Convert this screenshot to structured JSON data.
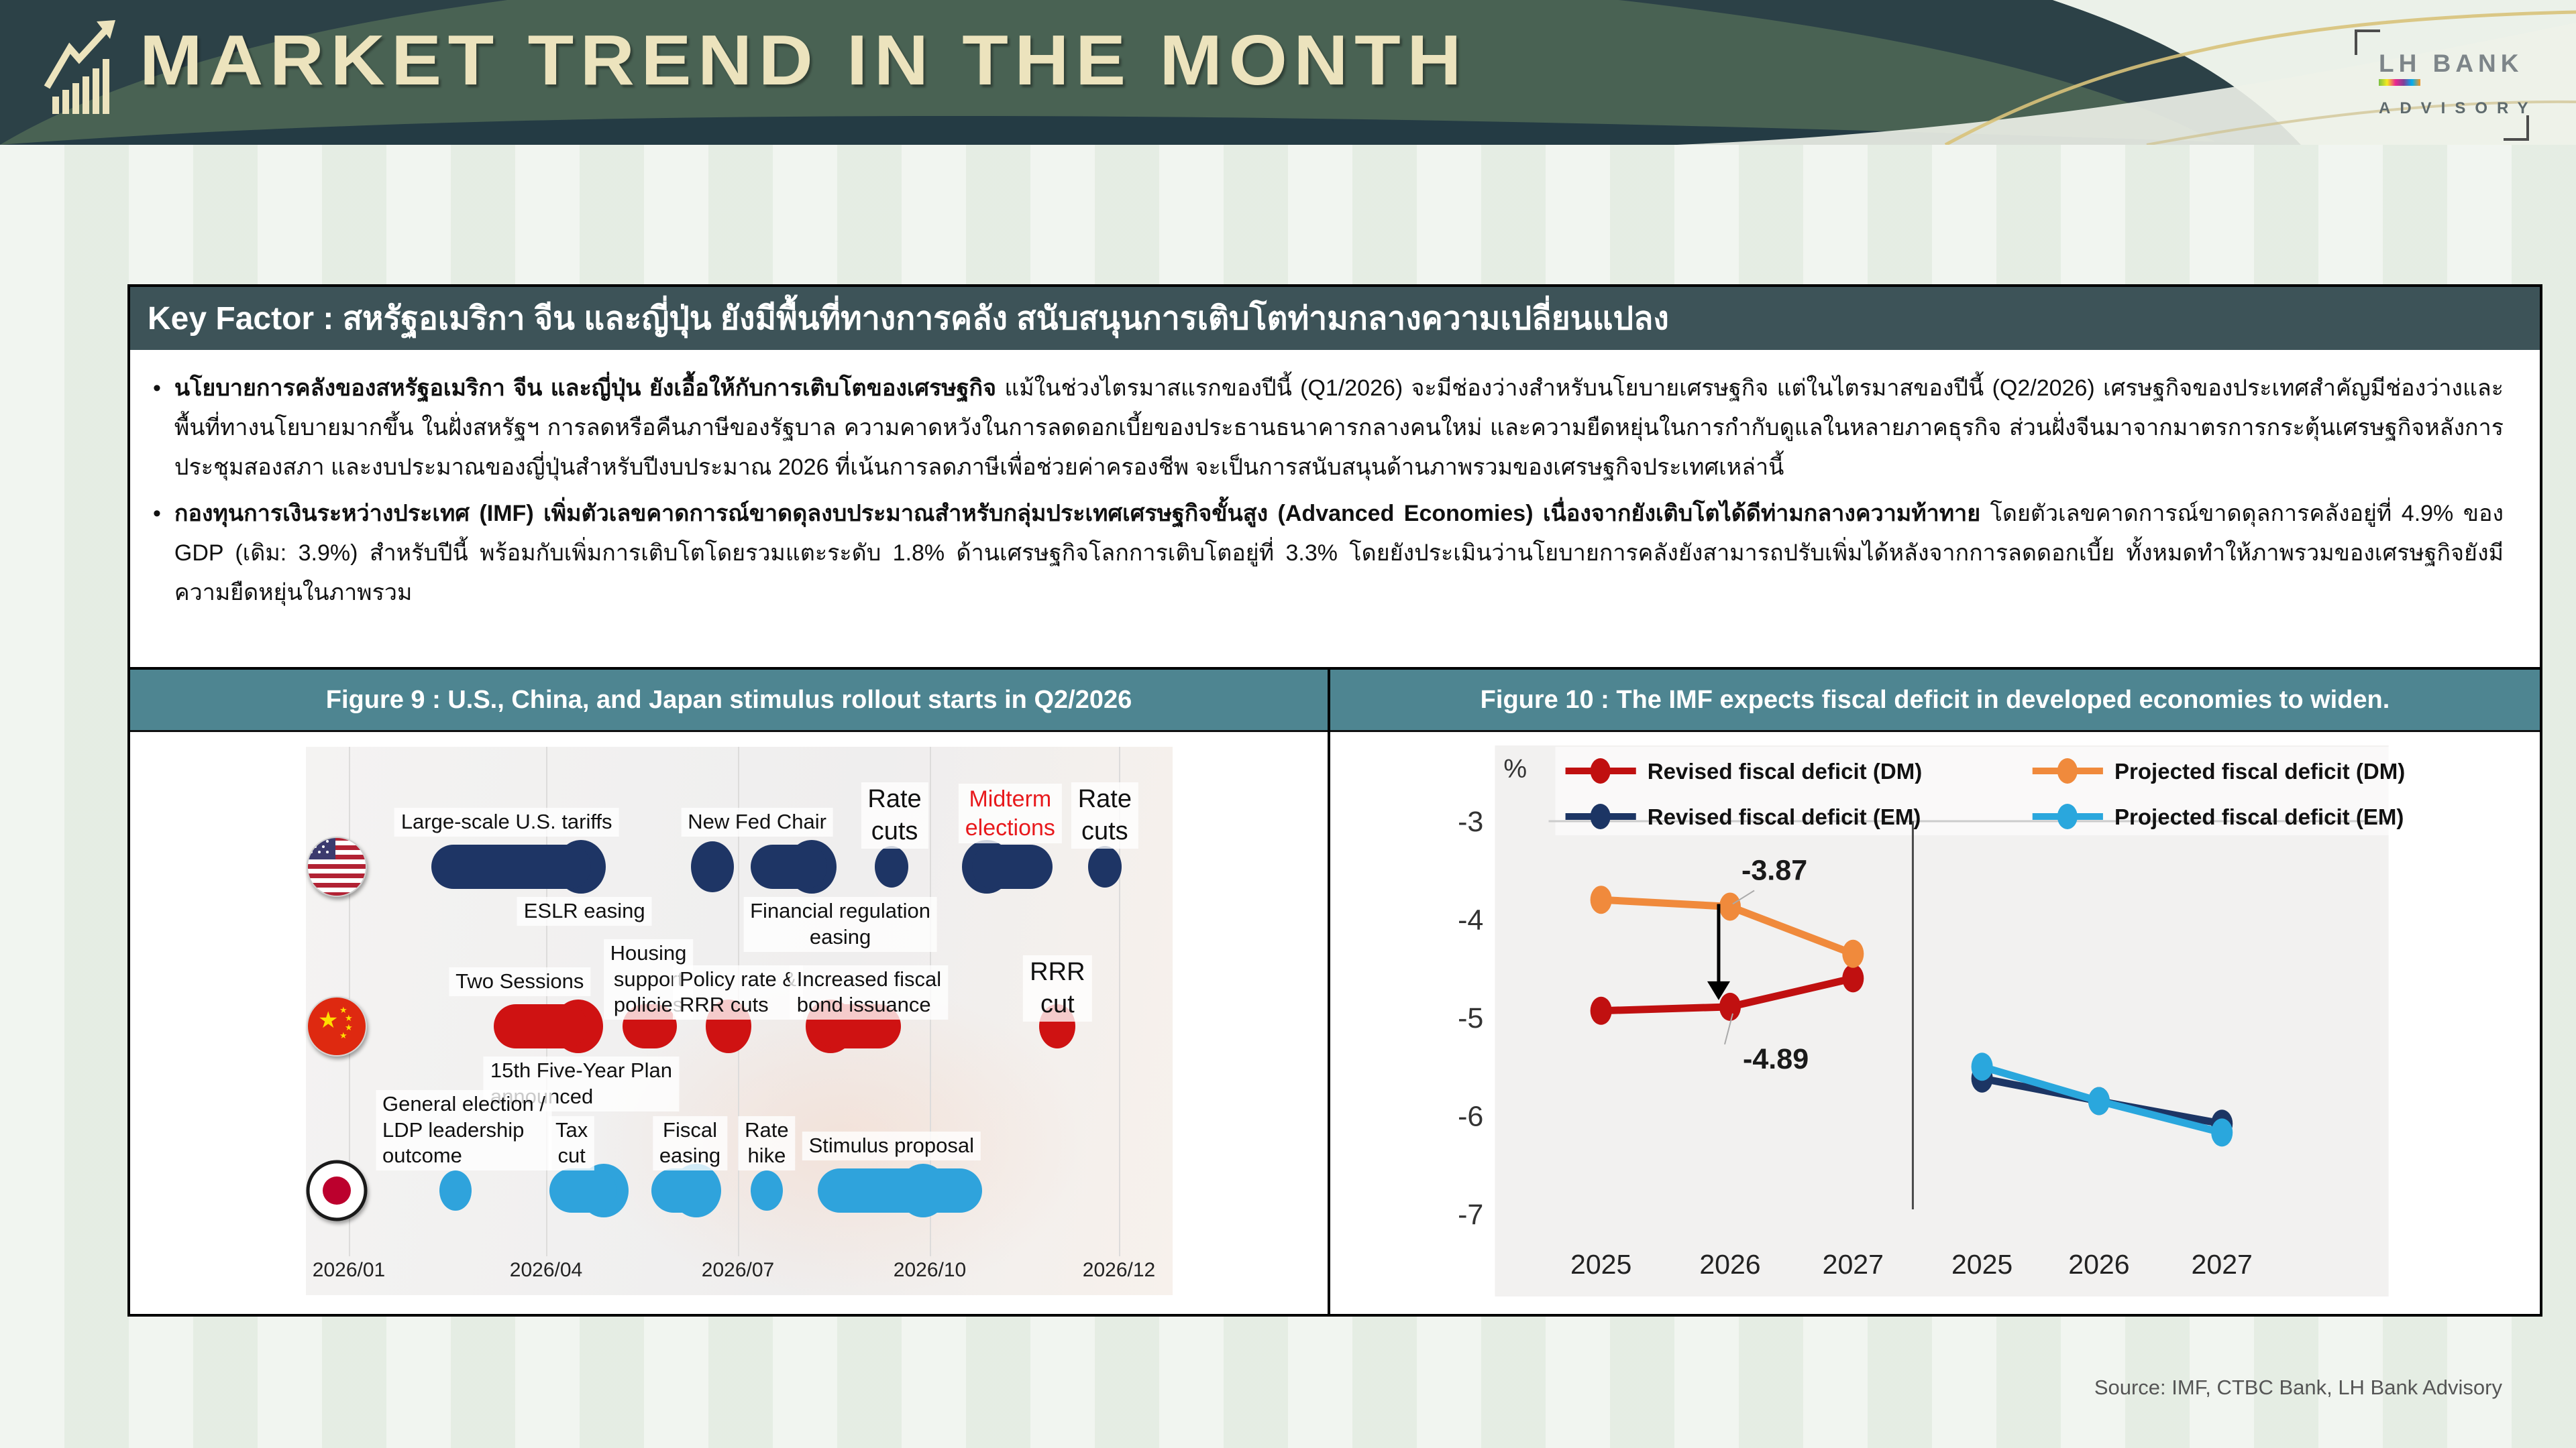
{
  "header": {
    "title": "MARKET TREND IN THE MONTH",
    "logo": {
      "line1": "LH BANK",
      "line2": "ADVISORY"
    }
  },
  "key_factor": {
    "title": "Key Factor : สหรัฐอเมริกา จีน และญี่ปุ่น ยังมีพื้นที่ทางการคลัง สนับสนุนการเติบโตท่ามกลางความเปลี่ยนแปลง"
  },
  "bullets": [
    {
      "bold": "นโยบายการคลังของสหรัฐอเมริกา จีน และญี่ปุ่น ยังเอื้อให้กับการเติบโตของเศรษฐกิจ",
      "rest": " แม้ในช่วงไตรมาสแรกของปีนี้ (Q1/2026) จะมีช่องว่างสำหรับนโยบายเศรษฐกิจ แต่ในไตรมาสของปีนี้ (Q2/2026) เศรษฐกิจของประเทศสำคัญมีช่องว่างและพื้นที่ทางนโยบายมากขึ้น ในฝั่งสหรัฐฯ การลดหรือคืนภาษีของรัฐบาล ความคาดหวังในการลดดอกเบี้ยของประธานธนาคารกลางคนใหม่ และความยืดหยุ่นในการกำกับดูแลในหลายภาคธุรกิจ ส่วนฝั่งจีนมาจากมาตรการกระตุ้นเศรษฐกิจหลังการประชุมสองสภา และงบประมาณของญี่ปุ่นสำหรับปีงบประมาณ 2026 ที่เน้นการลดภาษีเพื่อช่วยค่าครองชีพ จะเป็นการสนับสนุนด้านภาพรวมของเศรษฐกิจประเทศเหล่านี้"
    },
    {
      "bold": "กองทุนการเงินระหว่างประเทศ (IMF) เพิ่มตัวเลขคาดการณ์ขาดดุลงบประมาณสำหรับกลุ่มประเทศเศรษฐกิจขั้นสูง (Advanced Economies) เนื่องจากยังเติบโตได้ดีท่ามกลางความท้าทาย",
      "rest": " โดยตัวเลขคาดการณ์ขาดดุลการคลังอยู่ที่ 4.9% ของ GDP (เดิม: 3.9%) สำหรับปีนี้ พร้อมกับเพิ่มการเติบโตโดยรวมแตะระดับ 1.8% ด้านเศรษฐกิจโลกการเติบโตอยู่ที่ 3.3% โดยยังประเมินว่านโยบายการคลังยังสามารถปรับเพิ่มได้หลังจากการลดดอกเบี้ย ทั้งหมดทำให้ภาพรวมของเศรษฐกิจยังมีความยืดหยุ่นในภาพรวม"
    }
  ],
  "figure9": {
    "title": "Figure 9 : U.S., China, and Japan stimulus rollout starts in Q2/2026"
  },
  "figure10": {
    "title": "Figure 10 : The IMF expects fiscal deficit in developed economies to widen."
  },
  "source": "Source: IMF, CTBC Bank, LH Bank Advisory",
  "colors": {
    "header_bg": "#2c4147",
    "header_arc": "#4b6454",
    "header_text": "#ece3bd",
    "key_factor_bar": "#3d5358",
    "figure_title_bar": "#4e8591",
    "us_navy": "#1e3565",
    "china_red": "#cf1212",
    "japan_blue": "#2fa3dc",
    "dm_revised_red": "#c01010",
    "dm_projected_orange": "#f08a3c",
    "em_revised_navy": "#1c3564",
    "em_projected_blue": "#2aa7dd"
  },
  "chart_data": [
    {
      "id": "figure9",
      "type": "scatter",
      "variant": "timeline",
      "title": "U.S., China, and Japan stimulus rollout starts in Q2/2026",
      "axis": {
        "unit": "month of 2026",
        "ticks": [
          "2026/01",
          "2026/04",
          "2026/07",
          "2026/10",
          "2026/12"
        ]
      },
      "rows": [
        {
          "country": "United States",
          "flag": "us",
          "color": "#1e3565",
          "markers": [
            {
              "shape": "bar",
              "start": 2.25,
              "end": 4.7
            },
            {
              "shape": "dot",
              "m": 6.6,
              "d": 64
            },
            {
              "shape": "bar",
              "start": 7.2,
              "end": 8.4
            },
            {
              "shape": "dot",
              "m": 9.4,
              "d": 50
            },
            {
              "shape": "bar",
              "start": 10.45,
              "end": 11.3
            },
            {
              "shape": "dot",
              "m": 11.85,
              "d": 50
            }
          ],
          "bumps": [
            4.55,
            8.15,
            10.6
          ],
          "labels": [
            {
              "lines": [
                "Large-scale U.S. tariffs"
              ],
              "side": "above",
              "m": 3.4
            },
            {
              "lines": [
                "ESLR easing"
              ],
              "side": "below",
              "m": 4.6
            },
            {
              "lines": [
                "New Fed Chair"
              ],
              "side": "above",
              "m": 7.3
            },
            {
              "lines": [
                "Financial regulation",
                "easing"
              ],
              "side": "below",
              "m": 8.6
            },
            {
              "lines": [
                "Rate",
                "cuts"
              ],
              "side": "above",
              "m": 9.45,
              "size": 38,
              "drop": 18
            },
            {
              "lines": [
                "Midterm",
                "elections"
              ],
              "side": "above",
              "m": 10.85,
              "size": 34,
              "color": "#e8191c",
              "drop": 10
            },
            {
              "lines": [
                "Rate",
                "cuts"
              ],
              "side": "above",
              "m": 11.85,
              "size": 38,
              "drop": 18
            }
          ]
        },
        {
          "country": "China",
          "flag": "cn",
          "color": "#cf1212",
          "markers": [
            {
              "shape": "bar",
              "start": 3.2,
              "end": 4.65
            },
            {
              "shape": "bar",
              "start": 5.2,
              "end": 6.05
            },
            {
              "shape": "dot",
              "m": 6.85,
              "d": 68
            },
            {
              "shape": "bar",
              "start": 8.2,
              "end": 9.55
            },
            {
              "shape": "dot",
              "m": 11.35,
              "d": 54
            }
          ],
          "bumps": [
            4.5,
            8.45
          ],
          "labels": [
            {
              "lines": [
                "Two Sessions"
              ],
              "side": "above",
              "m": 3.6
            },
            {
              "lines": [
                "15th Five-Year Plan",
                "announced"
              ],
              "side": "below",
              "m": 4.55,
              "align": "left"
            },
            {
              "lines": [
                "Housing",
                "support",
                "policies"
              ],
              "side": "above",
              "m": 5.6,
              "drop": 35
            },
            {
              "lines": [
                "Policy rate &",
                "RRR cuts"
              ],
              "side": "above",
              "m": 7.0,
              "align": "left",
              "drop": 35
            },
            {
              "lines": [
                "Increased fiscal",
                "bond issuance"
              ],
              "side": "above",
              "m": 9.05,
              "align": "left",
              "drop": 35
            },
            {
              "lines": [
                "RRR",
                "cut"
              ],
              "side": "above",
              "m": 11.35,
              "size": 38,
              "drop": 38
            }
          ]
        },
        {
          "country": "Japan",
          "flag": "jp",
          "color": "#2fa3dc",
          "markers": [
            {
              "shape": "dot",
              "m": 2.62,
              "d": 48
            },
            {
              "shape": "bar",
              "start": 4.05,
              "end": 5.1
            },
            {
              "shape": "bar",
              "start": 5.65,
              "end": 6.7
            },
            {
              "shape": "dot",
              "m": 7.45,
              "d": 48
            },
            {
              "shape": "bar",
              "start": 8.25,
              "end": 10.55
            }
          ],
          "bumps": [
            4.9,
            6.35,
            9.9
          ],
          "labels": [
            {
              "lines": [
                "General election /",
                "LDP leadership",
                "outcome"
              ],
              "side": "above",
              "m": 2.75,
              "align": "left",
              "drop": 15
            },
            {
              "lines": [
                "Tax",
                "cut"
              ],
              "side": "above",
              "m": 4.4,
              "drop": 15
            },
            {
              "lines": [
                "Fiscal",
                "easing"
              ],
              "side": "above",
              "m": 6.25,
              "drop": 15
            },
            {
              "lines": [
                "Rate",
                "hike"
              ],
              "side": "above",
              "m": 7.45,
              "drop": 15
            },
            {
              "lines": [
                "Stimulus proposal"
              ],
              "side": "above",
              "m": 9.4
            }
          ]
        }
      ]
    },
    {
      "id": "figure10",
      "type": "line",
      "title": "The IMF expects fiscal deficit in developed economies to widen.",
      "ylabel": "%",
      "ylim": [
        -7,
        -3
      ],
      "yticks": [
        -3,
        -4,
        -5,
        -6,
        -7
      ],
      "grid": "top line only",
      "legend_position": "top",
      "legend": [
        {
          "label": "Revised fiscal deficit (DM)",
          "color": "#c01010"
        },
        {
          "label": "Projected fiscal deficit (DM)",
          "color": "#f08a3c"
        },
        {
          "label": "Revised fiscal deficit (EM)",
          "color": "#1c3564"
        },
        {
          "label": "Projected fiscal deficit (EM)",
          "color": "#2aa7dd"
        }
      ],
      "panels": [
        {
          "categories": [
            "2025",
            "2026",
            "2027"
          ],
          "series": [
            {
              "name": "Revised fiscal deficit (DM)",
              "color": "#c01010",
              "values": [
                -4.93,
                -4.89,
                -4.6
              ]
            },
            {
              "name": "Projected fiscal deficit (DM)",
              "color": "#f08a3c",
              "values": [
                -3.8,
                -3.87,
                -4.35
              ]
            }
          ]
        },
        {
          "categories": [
            "2025",
            "2026",
            "2027"
          ],
          "series": [
            {
              "name": "Revised fiscal deficit (EM)",
              "color": "#1c3564",
              "values": [
                -5.62,
                -5.85,
                -6.08
              ]
            },
            {
              "name": "Projected fiscal deficit (EM)",
              "color": "#2aa7dd",
              "values": [
                -5.5,
                -5.85,
                -6.17
              ]
            }
          ]
        }
      ],
      "annotations": [
        {
          "text": "-3.87",
          "series": "Projected fiscal deficit (DM)",
          "point": 1,
          "placement": "above-right"
        },
        {
          "text": "-4.89",
          "series": "Revised fiscal deficit (DM)",
          "point": 1,
          "placement": "below-right"
        },
        {
          "type": "arrow",
          "from": "Projected fiscal deficit (DM)",
          "to": "Revised fiscal deficit (DM)",
          "at": 1
        }
      ]
    }
  ]
}
